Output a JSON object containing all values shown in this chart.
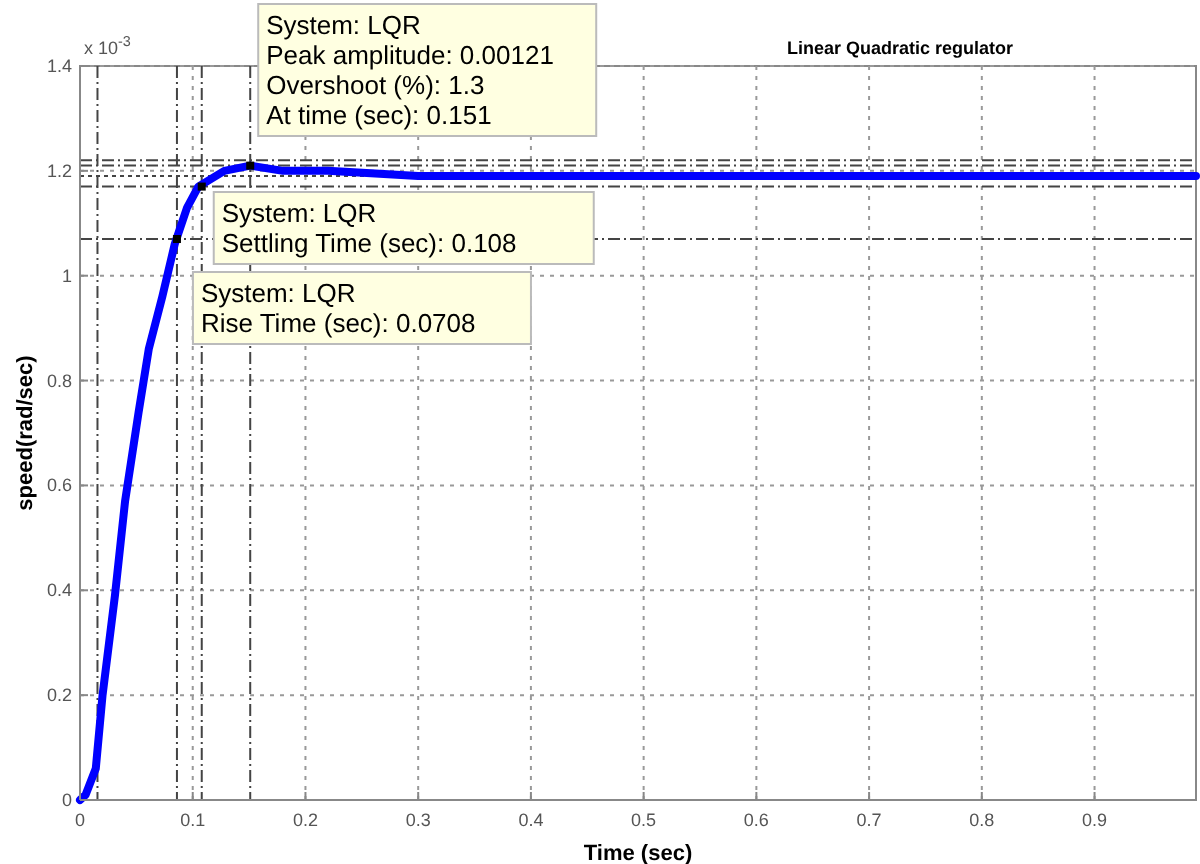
{
  "chart_data": {
    "type": "line",
    "title": "Linear Quadratic regulator",
    "xlabel": "Time (sec)",
    "ylabel": "speed(rad/sec)",
    "x": [
      0,
      0.005,
      0.014,
      0.02,
      0.031,
      0.04,
      0.052,
      0.061,
      0.073,
      0.084,
      0.095,
      0.105,
      0.128,
      0.151,
      0.18,
      0.22,
      0.3,
      0.5,
      0.99
    ],
    "series": [
      {
        "color": "#0000ff",
        "values": [
          0,
          0.01,
          0.06,
          0.2,
          0.39,
          0.57,
          0.74,
          0.86,
          0.96,
          1.06,
          1.13,
          1.17,
          1.2,
          1.21,
          1.2,
          1.2,
          1.19,
          1.19,
          1.19
        ]
      }
    ],
    "xlim": [
      0,
      0.99
    ],
    "xticks": [
      0,
      0.1,
      0.2,
      0.3,
      0.4,
      0.5,
      0.6,
      0.7,
      0.8,
      0.9
    ],
    "ylim": [
      0,
      1.4
    ],
    "yticks": [
      0,
      0.2,
      0.4,
      0.6,
      0.8,
      1,
      1.2,
      1.4
    ],
    "grid": true,
    "line_style": "solid",
    "marker": "none",
    "ref_lines": [
      {
        "axis": "y",
        "value": 1.22,
        "line_style": "dashed",
        "color": "#444444"
      },
      {
        "axis": "y",
        "value": 1.21,
        "line_style": "dashed",
        "color": "#444444"
      },
      {
        "axis": "y",
        "value": 1.19,
        "line_style": "dotted",
        "color": "#444444"
      },
      {
        "axis": "y",
        "value": 1.17,
        "line_style": "dashed",
        "color": "#444444"
      },
      {
        "axis": "y",
        "value": 1.07,
        "line_style": "dashed",
        "color": "#444444"
      },
      {
        "axis": "x",
        "value": 0.0155,
        "line_style": "dashed",
        "color": "#444444"
      },
      {
        "axis": "x",
        "value": 0.086,
        "line_style": "dashed",
        "color": "#444444"
      },
      {
        "axis": "x",
        "value": 0.108,
        "line_style": "dashed",
        "color": "#444444"
      },
      {
        "axis": "x",
        "value": 0.151,
        "line_style": "dashed",
        "color": "#444444"
      }
    ],
    "annotations": [
      "x 10$^{-3}$",
      {
        "text": "System: LQR\nPeak amplitude: 0.00121\nOvershoot (%): 1.3\nAt time (sec): 0.151",
        "x": 0.151,
        "y": 1.21
      },
      {
        "text": "System: LQR\nSettling Time (sec): 0.108",
        "x": 0.108,
        "y": 1.17
      },
      {
        "text": "System: LQR\nRise Time (sec): 0.0708",
        "x": 0.086,
        "y": 1.07
      }
    ]
  }
}
